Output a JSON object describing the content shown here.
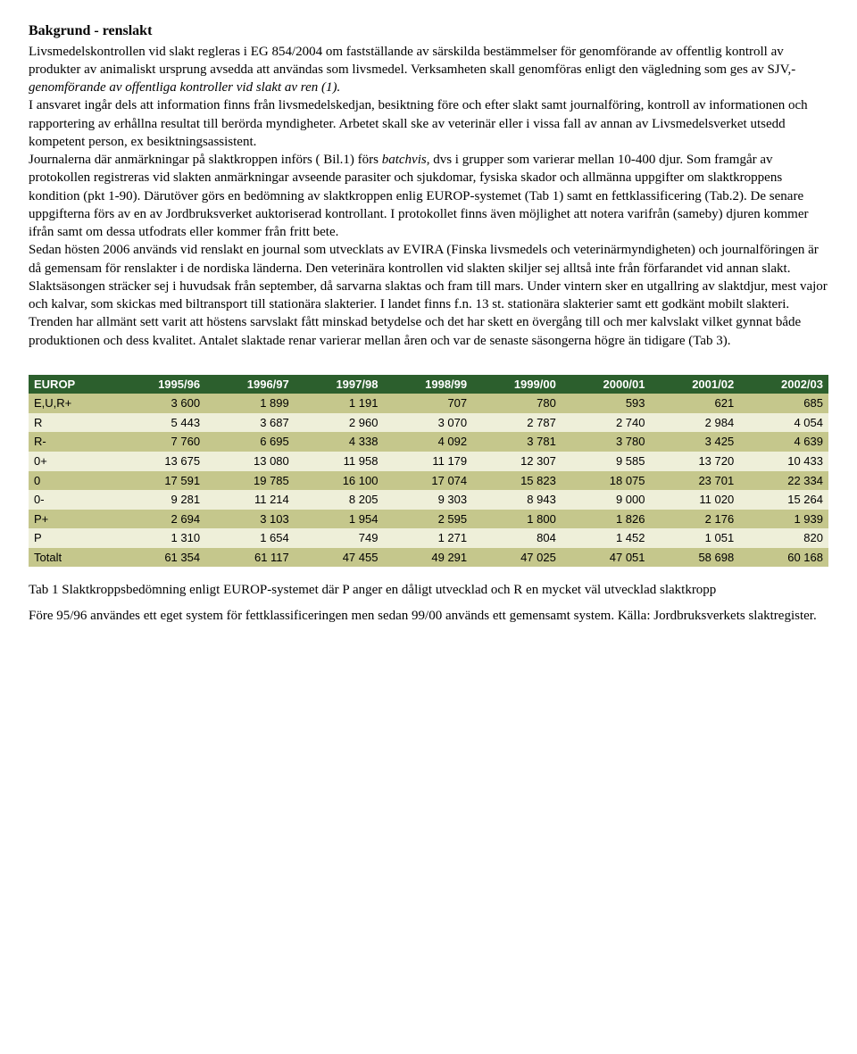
{
  "heading": "Bakgrund - renslakt",
  "para1_a": "Livsmedelskontrollen vid slakt regleras i EG 854/2004 om fastställande av särskilda bestämmelser för genomförande av offentlig kontroll av produkter av animaliskt ursprung avsedda att användas som livsmedel. Verksamheten skall genomföras enligt den vägledning som ges av SJV,- ",
  "para1_italic": "genomförande av offentliga kontroller vid slakt av ren (1).",
  "para2": "I ansvaret ingår dels att information finns från livsmedelskedjan, besiktning före och efter slakt samt journalföring, kontroll av informationen och rapportering av erhållna resultat till berörda myndigheter. Arbetet skall ske av veterinär eller i vissa fall av annan av Livsmedelsverket utsedd kompetent person, ex besiktningsassistent.",
  "para3_a": " Journalerna där anmärkningar på slaktkroppen införs ( Bil.1) förs ",
  "para3_italic": "batchvis",
  "para3_b": ", dvs i grupper som varierar mellan 10-400 djur. Som framgår av protokollen registreras vid slakten anmärkningar avseende parasiter och sjukdomar, fysiska skador och allmänna uppgifter om slaktkroppens kondition (pkt 1-90). Därutöver görs en bedömning av slaktkroppen enlig EUROP-systemet (Tab 1) samt en fettklassificering (Tab.2). De senare uppgifterna förs av en av Jordbruksverket auktoriserad kontrollant. I protokollet finns även möjlighet att notera varifrån (sameby) djuren kommer ifrån samt om dessa utfodrats eller kommer från fritt bete.",
  "para4": "Sedan hösten 2006 används vid renslakt en journal som utvecklats av EVIRA (Finska livsmedels och veterinärmyndigheten) och journalföringen är då gemensam för renslakter i de nordiska länderna. Den veterinära kontrollen vid slakten skiljer sej alltså inte från förfarandet vid annan slakt.",
  "para5": "Slaktsäsongen sträcker sej i huvudsak från september, då sarvarna slaktas och fram till mars. Under vintern sker en utgallring av slaktdjur, mest vajor och kalvar, som skickas med biltransport till stationära slakterier.  I landet finns f.n. 13 st. stationära slakterier samt ett godkänt mobilt slakteri. Trenden har allmänt sett varit att höstens sarvslakt fått minskad betydelse och det har skett en övergång till och mer kalvslakt vilket gynnat både produktionen och dess kvalitet. Antalet slaktade renar varierar mellan åren och var de senaste säsongerna högre än tidigare (Tab 3).",
  "table": {
    "header_bg": "#2c5f2d",
    "header_color": "#ffffff",
    "row_odd_bg": "#c5c78c",
    "row_even_bg": "#eeefd9",
    "columns": [
      "EUROP",
      "1995/96",
      "1996/97",
      "1997/98",
      "1998/99",
      "1999/00",
      "2000/01",
      "2001/02",
      "2002/03"
    ],
    "rows": [
      [
        "E,U,R+",
        "3 600",
        "1 899",
        "1 191",
        "707",
        "780",
        "593",
        "621",
        "685"
      ],
      [
        "R",
        "5 443",
        "3 687",
        "2 960",
        "3 070",
        "2 787",
        "2 740",
        "2 984",
        "4 054"
      ],
      [
        "R-",
        "7 760",
        "6 695",
        "4 338",
        "4 092",
        "3 781",
        "3 780",
        "3 425",
        "4 639"
      ],
      [
        "0+",
        "13 675",
        "13 080",
        "11 958",
        "11 179",
        "12 307",
        "9 585",
        "13 720",
        "10 433"
      ],
      [
        "0",
        "17 591",
        "19 785",
        "16 100",
        "17 074",
        "15 823",
        "18 075",
        "23 701",
        "22 334"
      ],
      [
        "0-",
        "9 281",
        "11 214",
        "8 205",
        "9 303",
        "8 943",
        "9 000",
        "11 020",
        "15 264"
      ],
      [
        "P+",
        "2 694",
        "3 103",
        "1 954",
        "2 595",
        "1 800",
        "1 826",
        "2 176",
        "1 939"
      ],
      [
        "P",
        "1 310",
        "1 654",
        "749",
        "1 271",
        "804",
        "1 452",
        "1 051",
        "820"
      ],
      [
        "Totalt",
        "61 354",
        "61 117",
        "47 455",
        "49 291",
        "47 025",
        "47 051",
        "58 698",
        "60 168"
      ]
    ]
  },
  "caption1": "Tab 1 Slaktkroppsbedömning enligt EUROP-systemet där P anger en dåligt utvecklad och R en mycket väl utvecklad slaktkropp",
  "caption2": "Före 95/96 användes ett eget system för fettklassificeringen men sedan 99/00 används ett gemensamt system.     Källa: Jordbruksverkets slaktregister."
}
